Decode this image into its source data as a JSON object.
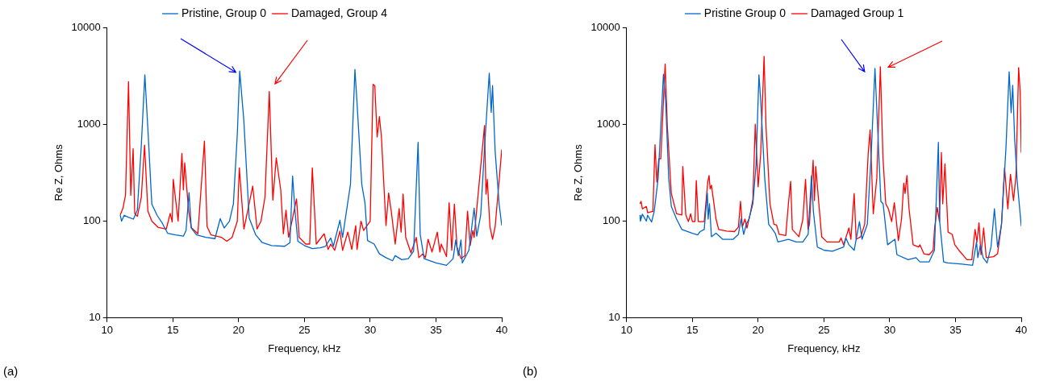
{
  "chart_data": [
    {
      "type": "line",
      "xlabel": "Frequency, kHz",
      "ylabel": "Re Z, Ohms",
      "xlim": [
        10,
        40
      ],
      "xticks": [
        10,
        15,
        20,
        25,
        30,
        35,
        40
      ],
      "ylim": [
        10,
        10000
      ],
      "yticks": [
        10,
        100,
        1000,
        10000
      ],
      "log": "y",
      "grid": false,
      "legend": "top",
      "marker": "none",
      "line_style": "solid",
      "annotations": [
        "(a)"
      ],
      "series": [
        {
          "name": "Pristine, Group 0",
          "color": "#0066cc",
          "x": [
            11.0,
            11.1,
            11.3,
            11.6,
            12.0,
            12.3,
            12.6,
            12.87,
            13.1,
            13.4,
            13.8,
            14.2,
            14.6,
            15.2,
            15.8,
            16.0,
            16.23,
            16.4,
            16.8,
            17.5,
            18.2,
            18.6,
            18.9,
            19.3,
            19.6,
            19.9,
            20.08,
            20.39,
            20.8,
            21.3,
            21.8,
            22.5,
            23.5,
            23.9,
            24.1,
            24.3,
            24.5,
            25.0,
            25.6,
            26.2,
            26.6,
            27.0,
            27.2,
            27.7,
            27.9,
            28.5,
            28.84,
            29.0,
            29.36,
            29.6,
            29.8,
            30.3,
            30.7,
            31.2,
            31.7,
            31.9,
            32.4,
            32.9,
            33.3,
            33.64,
            33.8,
            34.1,
            35.0,
            35.8,
            36.3,
            36.5,
            36.7,
            36.9,
            37.0,
            37.5,
            37.9,
            38.1,
            38.4,
            38.7,
            39.05,
            39.2,
            39.3,
            39.5,
            39.8,
            40.0
          ],
          "values": [
            116,
            100,
            115,
            110,
            105,
            130,
            600,
            3240,
            900,
            150,
            115,
            95,
            75,
            72,
            70,
            80,
            197,
            85,
            72,
            68,
            66,
            106,
            85,
            100,
            150,
            800,
            3550,
            1120,
            108,
            72,
            60,
            56,
            55,
            60,
            292,
            120,
            62,
            56,
            52,
            53,
            55,
            67,
            55,
            102,
            68,
            240,
            3680,
            1650,
            240,
            155,
            63,
            58,
            46,
            42,
            39,
            44,
            40,
            41,
            49,
            650,
            73,
            41,
            37,
            35,
            41,
            64,
            44,
            64,
            37,
            50,
            136,
            70,
            115,
            600,
            3370,
            1330,
            2510,
            520,
            150,
            90
          ]
        },
        {
          "name": "Damaged, Group 4",
          "color": "#ff0000",
          "x": [
            11.0,
            11.2,
            11.4,
            11.63,
            11.8,
            11.98,
            12.1,
            12.3,
            12.6,
            12.85,
            13.1,
            13.4,
            13.9,
            14.5,
            14.8,
            14.95,
            15.03,
            15.4,
            15.69,
            15.8,
            15.9,
            16.2,
            16.4,
            16.9,
            17.4,
            17.6,
            17.9,
            18.7,
            19.1,
            19.5,
            19.9,
            20.05,
            20.4,
            20.6,
            21.07,
            21.4,
            21.7,
            22.0,
            22.33,
            22.6,
            22.86,
            23.2,
            23.4,
            23.6,
            23.8,
            24.4,
            24.6,
            25.1,
            25.4,
            25.6,
            25.9,
            26.5,
            26.8,
            27.0,
            27.3,
            27.7,
            27.9,
            28.3,
            28.6,
            28.9,
            29.0,
            29.3,
            29.5,
            30.0,
            30.1,
            30.22,
            30.35,
            30.53,
            30.7,
            30.85,
            31.2,
            31.4,
            31.6,
            31.9,
            32.2,
            32.35,
            32.5,
            32.7,
            33.1,
            33.5,
            33.7,
            34.0,
            34.2,
            34.4,
            34.7,
            35.1,
            35.3,
            35.4,
            35.8,
            36.0,
            36.2,
            36.4,
            36.6,
            36.9,
            37.2,
            37.4,
            37.6,
            37.8,
            37.9,
            38.69,
            38.8,
            38.9,
            39.1,
            39.3,
            39.5,
            40.0
          ],
          "values": [
            116,
            135,
            185,
            2750,
            185,
            560,
            120,
            112,
            176,
            610,
            127,
            100,
            86,
            83,
            120,
            98,
            270,
            100,
            500,
            210,
            400,
            127,
            86,
            74,
            670,
            88,
            72,
            68,
            62,
            68,
            100,
            355,
            83,
            112,
            230,
            83,
            100,
            176,
            2180,
            165,
            450,
            210,
            74,
            130,
            68,
            170,
            68,
            58,
            58,
            355,
            58,
            74,
            51,
            58,
            50,
            79,
            50,
            77,
            51,
            90,
            51,
            100,
            80,
            100,
            460,
            2580,
            2500,
            740,
            1200,
            750,
            90,
            195,
            127,
            58,
            135,
            77,
            190,
            68,
            47,
            68,
            42,
            46,
            42,
            65,
            48,
            77,
            48,
            58,
            43,
            155,
            50,
            150,
            54,
            41,
            44,
            127,
            56,
            80,
            68,
            970,
            190,
            270,
            88,
            65,
            88,
            550
          ]
        }
      ]
    },
    {
      "type": "line",
      "xlabel": "Frequency, kHz",
      "ylabel": "Re Z, Ohms",
      "xlim": [
        10,
        40
      ],
      "xticks": [
        10,
        15,
        20,
        25,
        30,
        35,
        40
      ],
      "ylim": [
        10,
        10000
      ],
      "yticks": [
        10,
        100,
        1000,
        10000
      ],
      "log": "y",
      "grid": false,
      "legend": "top",
      "marker": "none",
      "line_style": "solid",
      "annotations": [
        "(b)"
      ],
      "series": [
        {
          "name": "Pristine Group 0",
          "color": "#0066cc",
          "x": [
            11.02,
            11.05,
            11.2,
            11.5,
            11.6,
            11.9,
            12.1,
            12.4,
            12.8,
            12.97,
            13.2,
            13.4,
            13.8,
            14.2,
            15.0,
            15.4,
            15.6,
            15.9,
            16.14,
            16.2,
            16.3,
            16.45,
            16.8,
            17.3,
            18.1,
            18.5,
            18.7,
            18.9,
            19.1,
            19.3,
            19.6,
            19.84,
            20.06,
            20.2,
            20.5,
            20.8,
            21.1,
            21.3,
            21.5,
            22.3,
            22.9,
            23.4,
            23.8,
            24.05,
            24.2,
            24.5,
            25.03,
            25.65,
            26.5,
            26.67,
            26.9,
            27.3,
            27.7,
            27.9,
            28.3,
            28.6,
            28.88,
            29.08,
            29.33,
            29.5,
            29.84,
            30.4,
            30.55,
            31.4,
            32.0,
            32.3,
            33.0,
            33.4,
            33.7,
            33.8,
            34.1,
            34.4,
            35.5,
            36.3,
            36.6,
            36.7,
            36.9,
            37.1,
            37.4,
            37.7,
            37.96,
            38.2,
            38.5,
            38.84,
            39.08,
            39.23,
            39.35,
            39.5,
            39.7,
            40.0
          ],
          "values": [
            115,
            100,
            118,
            100,
            115,
            98,
            126,
            278,
            3280,
            1740,
            278,
            142,
            105,
            82,
            75,
            72,
            78,
            82,
            195,
            105,
            151,
            69,
            75,
            65,
            65,
            73,
            105,
            73,
            93,
            105,
            151,
            380,
            3240,
            1740,
            278,
            93,
            82,
            75,
            61,
            65,
            61,
            61,
            73,
            295,
            126,
            54,
            50,
            49,
            54,
            67,
            57,
            50,
            99,
            65,
            93,
            510,
            3770,
            940,
            160,
            151,
            57,
            65,
            45,
            40,
            42,
            38,
            38,
            50,
            650,
            99,
            38,
            37,
            36,
            35,
            61,
            42,
            57,
            42,
            37,
            54,
            134,
            54,
            93,
            580,
            3480,
            1315,
            2520,
            700,
            250,
            89
          ]
        },
        {
          "name": "Damaged Group 1",
          "color": "#ff0000",
          "x": [
            11.02,
            11.1,
            11.2,
            11.5,
            11.6,
            12.0,
            12.16,
            12.3,
            12.45,
            12.6,
            12.93,
            13.1,
            13.4,
            13.8,
            14.2,
            14.27,
            14.5,
            14.7,
            14.87,
            15.0,
            15.2,
            15.3,
            15.45,
            15.9,
            16.17,
            16.27,
            16.35,
            16.45,
            16.8,
            17.0,
            17.6,
            18.2,
            18.5,
            18.66,
            18.8,
            19.0,
            19.15,
            19.4,
            19.6,
            19.78,
            20.0,
            20.2,
            20.45,
            20.6,
            20.9,
            21.2,
            21.4,
            21.6,
            22.1,
            22.3,
            22.47,
            22.6,
            23.1,
            23.4,
            23.6,
            23.8,
            23.9,
            24.18,
            24.28,
            24.38,
            24.6,
            24.83,
            25.24,
            26.16,
            26.3,
            26.5,
            26.9,
            27.05,
            27.3,
            27.45,
            27.8,
            28.1,
            28.37,
            28.51,
            28.75,
            29.02,
            29.29,
            29.49,
            29.7,
            29.9,
            30.15,
            30.35,
            30.45,
            30.66,
            30.9,
            31.07,
            31.17,
            31.31,
            31.47,
            31.78,
            32.2,
            32.3,
            32.6,
            33.0,
            33.3,
            33.42,
            33.62,
            33.78,
            33.93,
            34.03,
            34.2,
            34.44,
            34.75,
            34.95,
            35.26,
            35.87,
            36.24,
            36.49,
            36.63,
            36.79,
            36.94,
            37.14,
            37.34,
            37.9,
            38.2,
            38.5,
            38.73,
            38.98,
            39.18,
            39.41,
            39.6,
            39.8,
            39.92,
            40.0
          ],
          "values": [
            151,
            160,
            134,
            142,
            122,
            126,
            615,
            254,
            440,
            440,
            4190,
            940,
            193,
            119,
            116,
            366,
            116,
            99,
            119,
            99,
            99,
            262,
            99,
            99,
            254,
            296,
            215,
            235,
            105,
            82,
            79,
            78,
            87,
            160,
            87,
            105,
            85,
            119,
            168,
            1000,
            226,
            510,
            5020,
            940,
            151,
            93,
            91,
            73,
            71,
            151,
            258,
            82,
            69,
            105,
            270,
            82,
            93,
            425,
            163,
            366,
            160,
            69,
            61,
            61,
            67,
            57,
            85,
            65,
            193,
            65,
            69,
            93,
            510,
            875,
            119,
            278,
            3930,
            450,
            151,
            134,
            99,
            155,
            119,
            63,
            105,
            247,
            193,
            296,
            134,
            57,
            54,
            57,
            46,
            45,
            50,
            87,
            138,
            99,
            510,
            151,
            390,
            77,
            73,
            57,
            50,
            40,
            40,
            82,
            61,
            96,
            45,
            85,
            42,
            43,
            46,
            93,
            355,
            134,
            305,
            163,
            296,
            3850,
            2140,
            510
          ]
        }
      ]
    }
  ]
}
